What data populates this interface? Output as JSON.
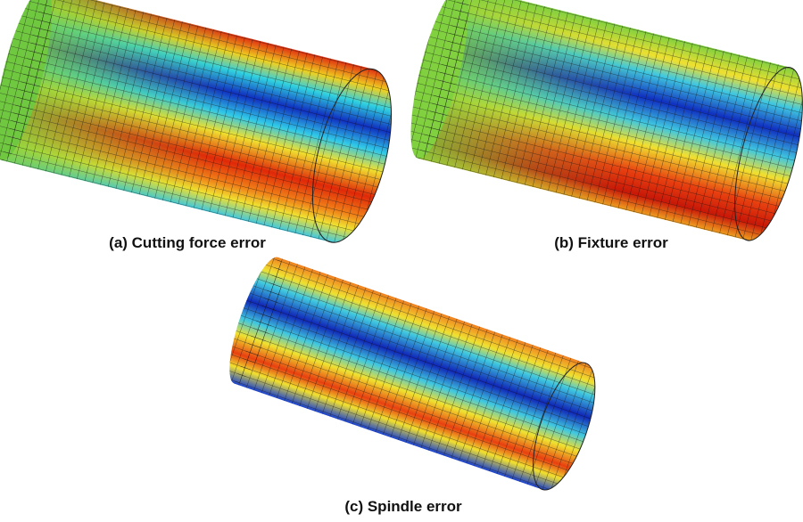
{
  "panels": [
    {
      "caption": "(a) Cutting force error"
    },
    {
      "caption": "(b) Fixture error"
    },
    {
      "caption": "(c) Spindle error"
    }
  ]
}
